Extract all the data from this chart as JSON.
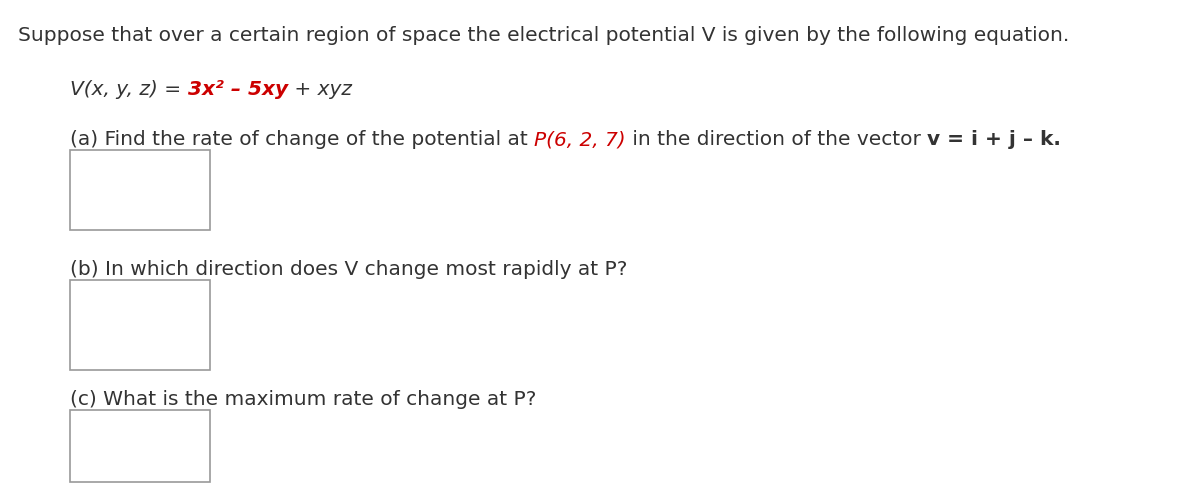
{
  "bg_color": "#ffffff",
  "text_color": "#333333",
  "red_color": "#cc0000",
  "title": "Suppose that over a certain region of space the electrical potential V is given by the following equation.",
  "part_b": "(b) In which direction does V change most rapidly at P?",
  "part_c": "(c) What is the maximum rate of change at P?",
  "font_size": 14.5,
  "font_family": "DejaVu Sans"
}
